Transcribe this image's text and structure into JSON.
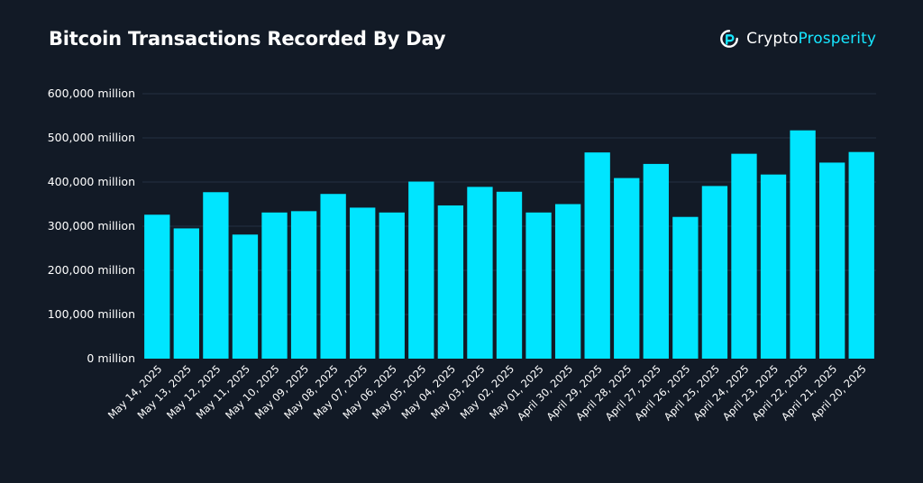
{
  "header": {
    "title": "Bitcoin Transactions Recorded By Day",
    "brand_first": "Crypto",
    "brand_second": "Prosperity",
    "logo_icon": "cryptoprosperity-logo-icon"
  },
  "colors": {
    "background": "#121a26",
    "bar": "#00e5ff",
    "grid": "#243041",
    "text": "#ffffff",
    "accent": "#16e6ff"
  },
  "chart_data": {
    "type": "bar",
    "title": "Bitcoin Transactions Recorded By Day",
    "xlabel": "",
    "ylabel": "",
    "unit_suffix": " million",
    "ylim": [
      0,
      600000
    ],
    "yticks": [
      0,
      100000,
      200000,
      300000,
      400000,
      500000,
      600000
    ],
    "ytick_labels": [
      "0 million",
      "100,000 million",
      "200,000 million",
      "300,000 million",
      "400,000 million",
      "500,000 million",
      "600,000 million"
    ],
    "grid": true,
    "legend": "none",
    "categories": [
      "May 14, 2025",
      "May 13, 2025",
      "May 12, 2025",
      "May 11, 2025",
      "May 10, 2025",
      "May 09, 2025",
      "May 08, 2025",
      "May 07, 2025",
      "May 06, 2025",
      "May 05, 2025",
      "May 04, 2025",
      "May 03, 2025",
      "May 02, 2025",
      "May 01, 2025",
      "April 30, 2025",
      "April 29, 2025",
      "April 28, 2025",
      "April 27, 2025",
      "April 26, 2025",
      "April 25, 2025",
      "April 24, 2025",
      "April 23, 2025",
      "April 22, 2025",
      "April 21, 2025",
      "April 20, 2025"
    ],
    "values": [
      326000,
      295000,
      377000,
      281000,
      331000,
      334000,
      373000,
      342000,
      331000,
      401000,
      347000,
      389000,
      378000,
      331000,
      350000,
      467000,
      409000,
      441000,
      321000,
      391000,
      464000,
      417000,
      517000,
      444000,
      468000
    ]
  }
}
